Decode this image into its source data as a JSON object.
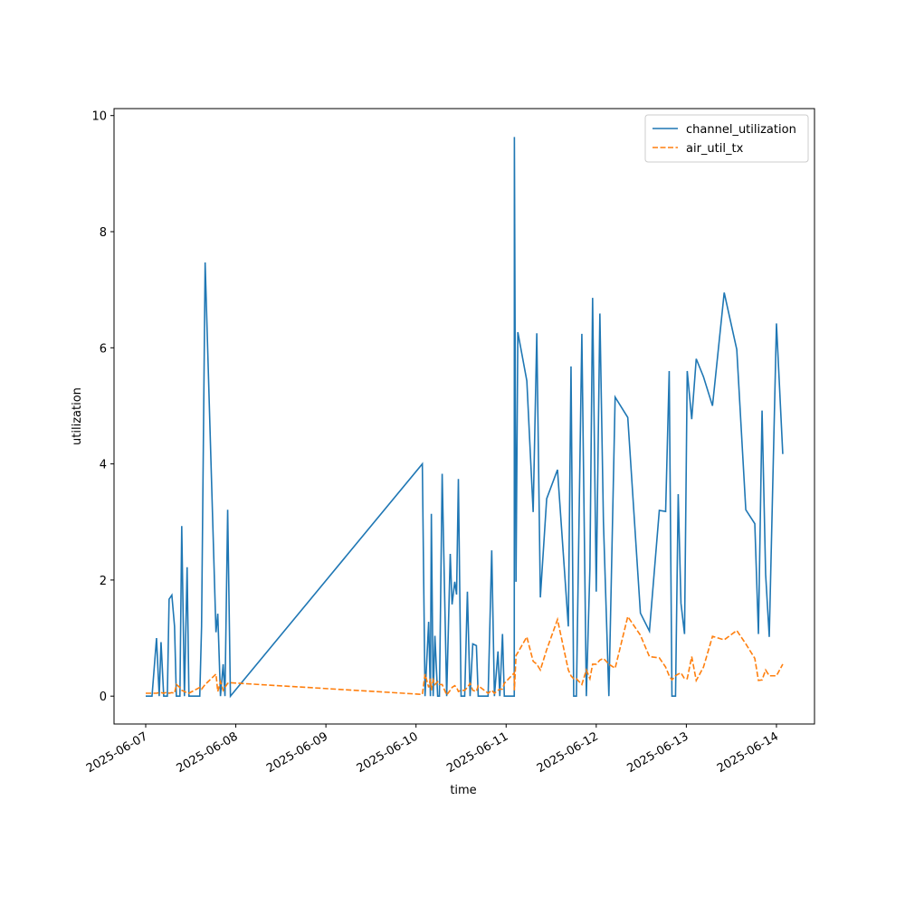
{
  "chart_data": {
    "type": "line",
    "xlabel": "time",
    "ylabel": "utilization",
    "x": [
      "2025-06-07T00:00",
      "2025-06-07T01:41",
      "2025-06-07T02:53",
      "2025-06-07T03:36",
      "2025-06-07T04:05",
      "2025-06-07T04:48",
      "2025-06-07T05:46",
      "2025-06-07T06:14",
      "2025-06-07T06:58",
      "2025-06-07T07:41",
      "2025-06-07T08:10",
      "2025-06-07T09:07",
      "2025-06-07T09:36",
      "2025-06-07T10:19",
      "2025-06-07T11:02",
      "2025-06-07T11:31",
      "2025-06-07T14:24",
      "2025-06-07T14:53",
      "2025-06-07T15:50",
      "2025-06-07T18:43",
      "2025-06-07T19:12",
      "2025-06-07T19:55",
      "2025-06-07T20:38",
      "2025-06-07T21:07",
      "2025-06-07T21:50",
      "2025-06-07T22:34",
      "2025-06-10T01:41",
      "2025-06-10T02:24",
      "2025-06-10T03:22",
      "2025-06-10T03:50",
      "2025-06-10T04:05",
      "2025-06-10T04:34",
      "2025-06-10T05:02",
      "2025-06-10T05:46",
      "2025-06-10T06:14",
      "2025-06-10T06:58",
      "2025-06-10T08:10",
      "2025-06-10T09:07",
      "2025-06-10T09:36",
      "2025-06-10T10:19",
      "2025-06-10T10:48",
      "2025-06-10T11:17",
      "2025-06-10T12:00",
      "2025-06-10T12:58",
      "2025-06-10T13:41",
      "2025-06-10T14:24",
      "2025-06-10T15:07",
      "2025-06-10T16:05",
      "2025-06-10T16:34",
      "2025-06-10T19:12",
      "2025-06-10T20:10",
      "2025-06-10T20:53",
      "2025-06-10T21:50",
      "2025-06-10T22:19",
      "2025-06-10T23:02",
      "2025-06-10T23:31",
      "2025-06-11T02:10",
      "2025-06-11T02:12",
      "2025-06-11T02:38",
      "2025-06-11T03:07",
      "2025-06-11T05:31",
      "2025-06-11T07:12",
      "2025-06-11T08:10",
      "2025-06-11T09:07",
      "2025-06-11T10:48",
      "2025-06-11T13:41",
      "2025-06-11T16:34",
      "2025-06-11T17:17",
      "2025-06-11T18:00",
      "2025-06-11T18:43",
      "2025-06-11T20:10",
      "2025-06-11T21:22",
      "2025-06-11T22:19",
      "2025-06-11T23:02",
      "2025-06-12T00:00",
      "2025-06-12T00:58",
      "2025-06-12T01:55",
      "2025-06-12T03:22",
      "2025-06-12T05:02",
      "2025-06-12T08:24",
      "2025-06-12T11:46",
      "2025-06-12T14:10",
      "2025-06-12T16:48",
      "2025-06-12T18:29",
      "2025-06-12T19:26",
      "2025-06-12T20:10",
      "2025-06-12T21:07",
      "2025-06-12T21:50",
      "2025-06-12T22:34",
      "2025-06-12T23:31",
      "2025-06-13T00:14",
      "2025-06-13T01:26",
      "2025-06-13T02:38",
      "2025-06-13T04:34",
      "2025-06-13T06:58",
      "2025-06-13T10:05",
      "2025-06-13T13:26",
      "2025-06-13T15:50",
      "2025-06-13T18:14",
      "2025-06-13T19:12",
      "2025-06-13T20:10",
      "2025-06-13T21:07",
      "2025-06-13T22:05",
      "2025-06-14T00:00",
      "2025-06-14T01:41"
    ],
    "series": [
      {
        "name": "channel_utilization",
        "color": "#1f77b4",
        "dash": "solid",
        "values": [
          0,
          0,
          1.0,
          0,
          0.93,
          0,
          0,
          1.67,
          1.74,
          1.2,
          0,
          0,
          2.93,
          0,
          2.22,
          0,
          0,
          1.2,
          7.47,
          1.1,
          1.42,
          0,
          0.55,
          0,
          3.21,
          0,
          4.0,
          0,
          1.28,
          0,
          3.14,
          0,
          1.04,
          0,
          0,
          3.83,
          0,
          2.45,
          1.58,
          1.97,
          1.75,
          3.74,
          0,
          0,
          1.8,
          0,
          0.9,
          0.87,
          0,
          0,
          2.51,
          0,
          0.77,
          0,
          1.07,
          0,
          0,
          9.63,
          1.97,
          6.27,
          5.43,
          3.17,
          6.25,
          1.7,
          3.4,
          3.9,
          1.2,
          5.68,
          0,
          0,
          6.24,
          0,
          2.2,
          6.86,
          1.8,
          6.59,
          3.0,
          0,
          5.15,
          4.8,
          1.43,
          1.12,
          3.2,
          3.18,
          5.6,
          0,
          0,
          3.48,
          1.6,
          1.07,
          5.6,
          4.77,
          5.81,
          5.5,
          5.0,
          6.95,
          5.97,
          3.21,
          2.97,
          1.07,
          4.92,
          2.1,
          1.02,
          6.42,
          4.17
        ]
      },
      {
        "name": "air_util_tx",
        "color": "#ff7f0e",
        "dash": "dashed",
        "values": [
          0.05,
          0.05,
          0.05,
          0.06,
          0.06,
          0.05,
          0.07,
          0.05,
          0.06,
          0.05,
          0.2,
          0.15,
          0.1,
          0.08,
          0.05,
          0.05,
          0.15,
          0.12,
          0.2,
          0.38,
          0.08,
          0.25,
          0.1,
          0.15,
          0.22,
          0.23,
          0.03,
          0.38,
          0.15,
          0.3,
          0.1,
          0.28,
          0.2,
          0.25,
          0.2,
          0.2,
          0.02,
          0.1,
          0.15,
          0.18,
          0.15,
          0.08,
          0.1,
          0.1,
          0.15,
          0.22,
          0.1,
          0.08,
          0.18,
          0.05,
          0.1,
          0.05,
          0.1,
          0.12,
          0.12,
          0.22,
          0.4,
          0.1,
          0.7,
          0.75,
          1.02,
          0.6,
          0.55,
          0.45,
          0.8,
          1.32,
          0.45,
          0.35,
          0.3,
          0.3,
          0.2,
          0.45,
          0.3,
          0.55,
          0.55,
          0.62,
          0.65,
          0.55,
          0.48,
          1.37,
          1.05,
          0.68,
          0.66,
          0.5,
          0.35,
          0.28,
          0.35,
          0.38,
          0.4,
          0.3,
          0.3,
          0.68,
          0.27,
          0.5,
          1.03,
          0.97,
          1.13,
          0.9,
          0.65,
          0.27,
          0.28,
          0.45,
          0.35,
          0.35,
          0.55
        ]
      }
    ],
    "xlim": [
      "2025-06-06T15:34",
      "2025-06-14T10:08"
    ],
    "xticks": [
      "2025-06-07",
      "2025-06-08",
      "2025-06-09",
      "2025-06-10",
      "2025-06-11",
      "2025-06-12",
      "2025-06-13",
      "2025-06-14"
    ],
    "ylim": [
      -0.48,
      10.12
    ],
    "yticks": [
      0,
      2,
      4,
      6,
      8,
      10
    ],
    "grid": false,
    "legend": "upper right"
  }
}
